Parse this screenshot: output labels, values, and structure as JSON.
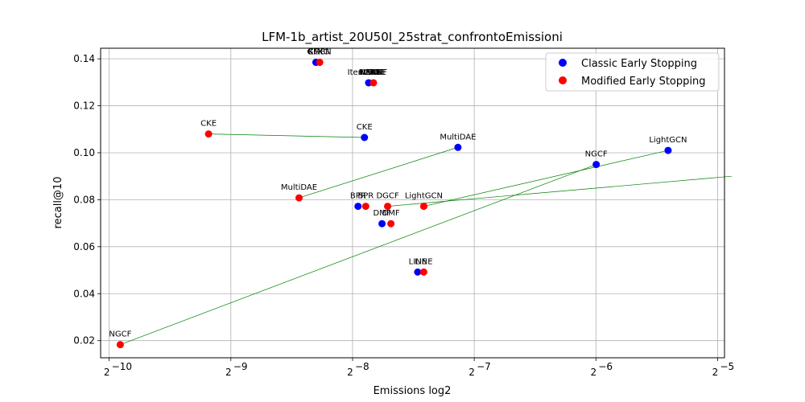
{
  "chart_data": {
    "type": "scatter",
    "title": "LFM-1b_artist_20U50I_25strat_confrontoEmissioni",
    "xlabel": "Emissions log2",
    "ylabel": "recall@10",
    "xscale": "log2",
    "xlim": [
      0.00093,
      0.0325
    ],
    "ylim": [
      0.0127,
      0.1445
    ],
    "xticks": [
      {
        "value": 0.0009765625,
        "base": "2",
        "exp": "−10"
      },
      {
        "value": 0.001953125,
        "base": "2",
        "exp": "−9"
      },
      {
        "value": 0.00390625,
        "base": "2",
        "exp": "−8"
      },
      {
        "value": 0.0078125,
        "base": "2",
        "exp": "−7"
      },
      {
        "value": 0.015625,
        "base": "2",
        "exp": "−6"
      },
      {
        "value": 0.03125,
        "base": "2",
        "exp": "−5"
      }
    ],
    "yticks": [
      {
        "value": 0.02,
        "label": "0.02"
      },
      {
        "value": 0.04,
        "label": "0.04"
      },
      {
        "value": 0.06,
        "label": "0.06"
      },
      {
        "value": 0.08,
        "label": "0.08"
      },
      {
        "value": 0.1,
        "label": "0.10"
      },
      {
        "value": 0.12,
        "label": "0.12"
      },
      {
        "value": 0.14,
        "label": "0.14"
      }
    ],
    "grid": true,
    "legend": {
      "position": "top-right"
    },
    "series": [
      {
        "name": "Classic Early Stopping",
        "color": "#0000ff",
        "points": [
          {
            "label": "GMF",
            "x": 0.00317,
            "y": 0.1385
          },
          {
            "label": "ItemKNN",
            "x": 0.00428,
            "y": 0.1298
          },
          {
            "label": "CKE",
            "x": 0.00418,
            "y": 0.1065
          },
          {
            "label": "MultiDAE",
            "x": 0.00712,
            "y": 0.1023
          },
          {
            "label": "NGCF",
            "x": 0.01565,
            "y": 0.095
          },
          {
            "label": "LightGCN",
            "x": 0.02357,
            "y": 0.101
          },
          {
            "label": "DGCF",
            "x": 0.03385,
            "y": 0.09
          },
          {
            "label": "BPR",
            "x": 0.00403,
            "y": 0.0772
          },
          {
            "label": "DMF",
            "x": 0.00462,
            "y": 0.0698
          },
          {
            "label": "LINE",
            "x": 0.00566,
            "y": 0.0492
          }
        ]
      },
      {
        "name": "Modified Early Stopping",
        "color": "#ff0000",
        "points": [
          {
            "label": "GMF",
            "x": 0.00324,
            "y": 0.1385
          },
          {
            "label": "ItemKNN",
            "x": 0.0044,
            "y": 0.1298
          },
          {
            "label": "CKE",
            "x": 0.00172,
            "y": 0.108
          },
          {
            "label": "MultiDAE",
            "x": 0.00288,
            "y": 0.0808
          },
          {
            "label": "NGCF",
            "x": 0.00104,
            "y": 0.0183
          },
          {
            "label": "LightGCN",
            "x": 0.00586,
            "y": 0.0772
          },
          {
            "label": "DGCF",
            "x": 0.00477,
            "y": 0.0772
          },
          {
            "label": "BPR",
            "x": 0.00421,
            "y": 0.0772
          },
          {
            "label": "DMF",
            "x": 0.00486,
            "y": 0.0698
          },
          {
            "label": "LINE",
            "x": 0.00586,
            "y": 0.0492
          }
        ]
      }
    ],
    "point_labels": [
      {
        "text": "GMF",
        "x": 0.00317,
        "y": 0.1385
      },
      {
        "text": "CFKG",
        "x": 0.00322,
        "y": 0.1385
      },
      {
        "text": "KGCN",
        "x": 0.00324,
        "y": 0.1385
      },
      {
        "text": "ItemKNN",
        "x": 0.0042,
        "y": 0.1298
      },
      {
        "text": "KGAT",
        "x": 0.0043,
        "y": 0.1298
      },
      {
        "text": "NNCF",
        "x": 0.00434,
        "y": 0.1298
      },
      {
        "text": "LINE",
        "x": 0.00437,
        "y": 0.1298
      },
      {
        "text": "NeuMF",
        "x": 0.0044,
        "y": 0.1298
      },
      {
        "text": "EASE",
        "x": 0.00446,
        "y": 0.1298
      },
      {
        "text": "CKE",
        "x": 0.00418,
        "y": 0.1065
      },
      {
        "text": "CKE",
        "x": 0.00172,
        "y": 0.108
      },
      {
        "text": "MultiDAE",
        "x": 0.00712,
        "y": 0.1023
      },
      {
        "text": "MultiDAE",
        "x": 0.00288,
        "y": 0.0808
      },
      {
        "text": "NGCF",
        "x": 0.01565,
        "y": 0.095
      },
      {
        "text": "NGCF",
        "x": 0.00104,
        "y": 0.0183
      },
      {
        "text": "LightGCN",
        "x": 0.02357,
        "y": 0.101
      },
      {
        "text": "LightGCN",
        "x": 0.00586,
        "y": 0.0772
      },
      {
        "text": "DGCF",
        "x": 0.03385,
        "y": 0.09
      },
      {
        "text": "DGCF",
        "x": 0.00477,
        "y": 0.0772
      },
      {
        "text": "BPR",
        "x": 0.00403,
        "y": 0.0772
      },
      {
        "text": "BPR",
        "x": 0.00421,
        "y": 0.0772
      },
      {
        "text": "DMF",
        "x": 0.00462,
        "y": 0.0698
      },
      {
        "text": "DMF",
        "x": 0.00486,
        "y": 0.0698
      },
      {
        "text": "LINE",
        "x": 0.00566,
        "y": 0.0492
      },
      {
        "text": "LINE",
        "x": 0.00586,
        "y": 0.0492
      }
    ],
    "connections": [
      {
        "from": [
          0.00418,
          0.1065
        ],
        "to": [
          0.00172,
          0.108
        ]
      },
      {
        "from": [
          0.00712,
          0.1023
        ],
        "to": [
          0.00288,
          0.0808
        ]
      },
      {
        "from": [
          0.01565,
          0.095
        ],
        "to": [
          0.00104,
          0.0183
        ]
      },
      {
        "from": [
          0.02357,
          0.101
        ],
        "to": [
          0.00586,
          0.0772
        ]
      },
      {
        "from": [
          0.03385,
          0.09
        ],
        "to": [
          0.00477,
          0.0772
        ]
      }
    ],
    "connection_color": "#008000"
  }
}
